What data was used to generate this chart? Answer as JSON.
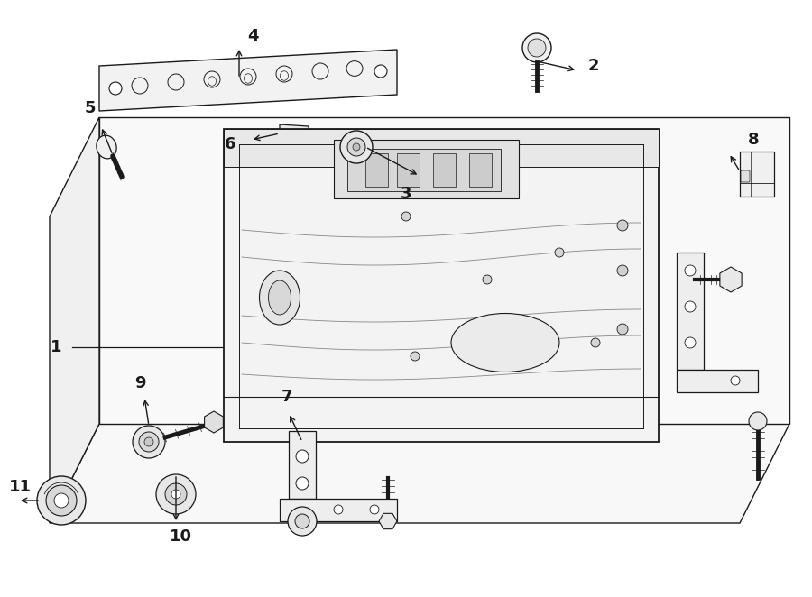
{
  "background_color": "#ffffff",
  "line_color": "#1a1a1a",
  "fig_width": 9.0,
  "fig_height": 6.62,
  "lw": 1.0
}
